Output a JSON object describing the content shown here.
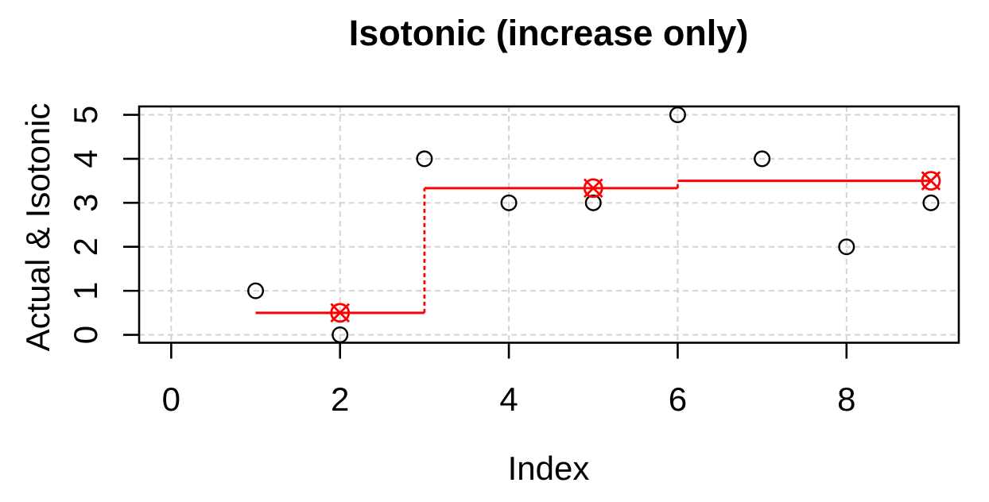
{
  "chart_data": {
    "type": "scatter",
    "title": "Isotonic (increase only)",
    "xlabel": "Index",
    "ylabel": "Actual & Isotonic",
    "x": [
      1,
      2,
      3,
      4,
      5,
      6,
      7,
      8,
      9
    ],
    "y": [
      1,
      0,
      4,
      3,
      3,
      5,
      4,
      2,
      3
    ],
    "series": [
      {
        "name": "Actual",
        "type": "points",
        "values": [
          1,
          0,
          4,
          3,
          3,
          5,
          4,
          2,
          3
        ]
      },
      {
        "name": "Isotonic fit",
        "type": "step",
        "values": [
          0.5,
          0.5,
          3.3333,
          3.3333,
          3.3333,
          3.5,
          3.5,
          3.5,
          3.5
        ]
      }
    ],
    "knots": {
      "x": [
        2,
        5,
        9
      ],
      "y": [
        0.5,
        3.3333,
        3.5
      ]
    },
    "xticks": [
      0,
      2,
      4,
      6,
      8
    ],
    "yticks": [
      0,
      1,
      2,
      3,
      4,
      5
    ],
    "xlim": [
      -0.38,
      9.33
    ],
    "ylim": [
      -0.18,
      5.19
    ],
    "grid": true,
    "legend": "none",
    "colors": {
      "points": "#000000",
      "fit_line": "#FF0000",
      "knot_marker": "#FF0000",
      "grid": "#D3D3D3",
      "axis": "#000000",
      "background": "#FFFFFF"
    }
  }
}
